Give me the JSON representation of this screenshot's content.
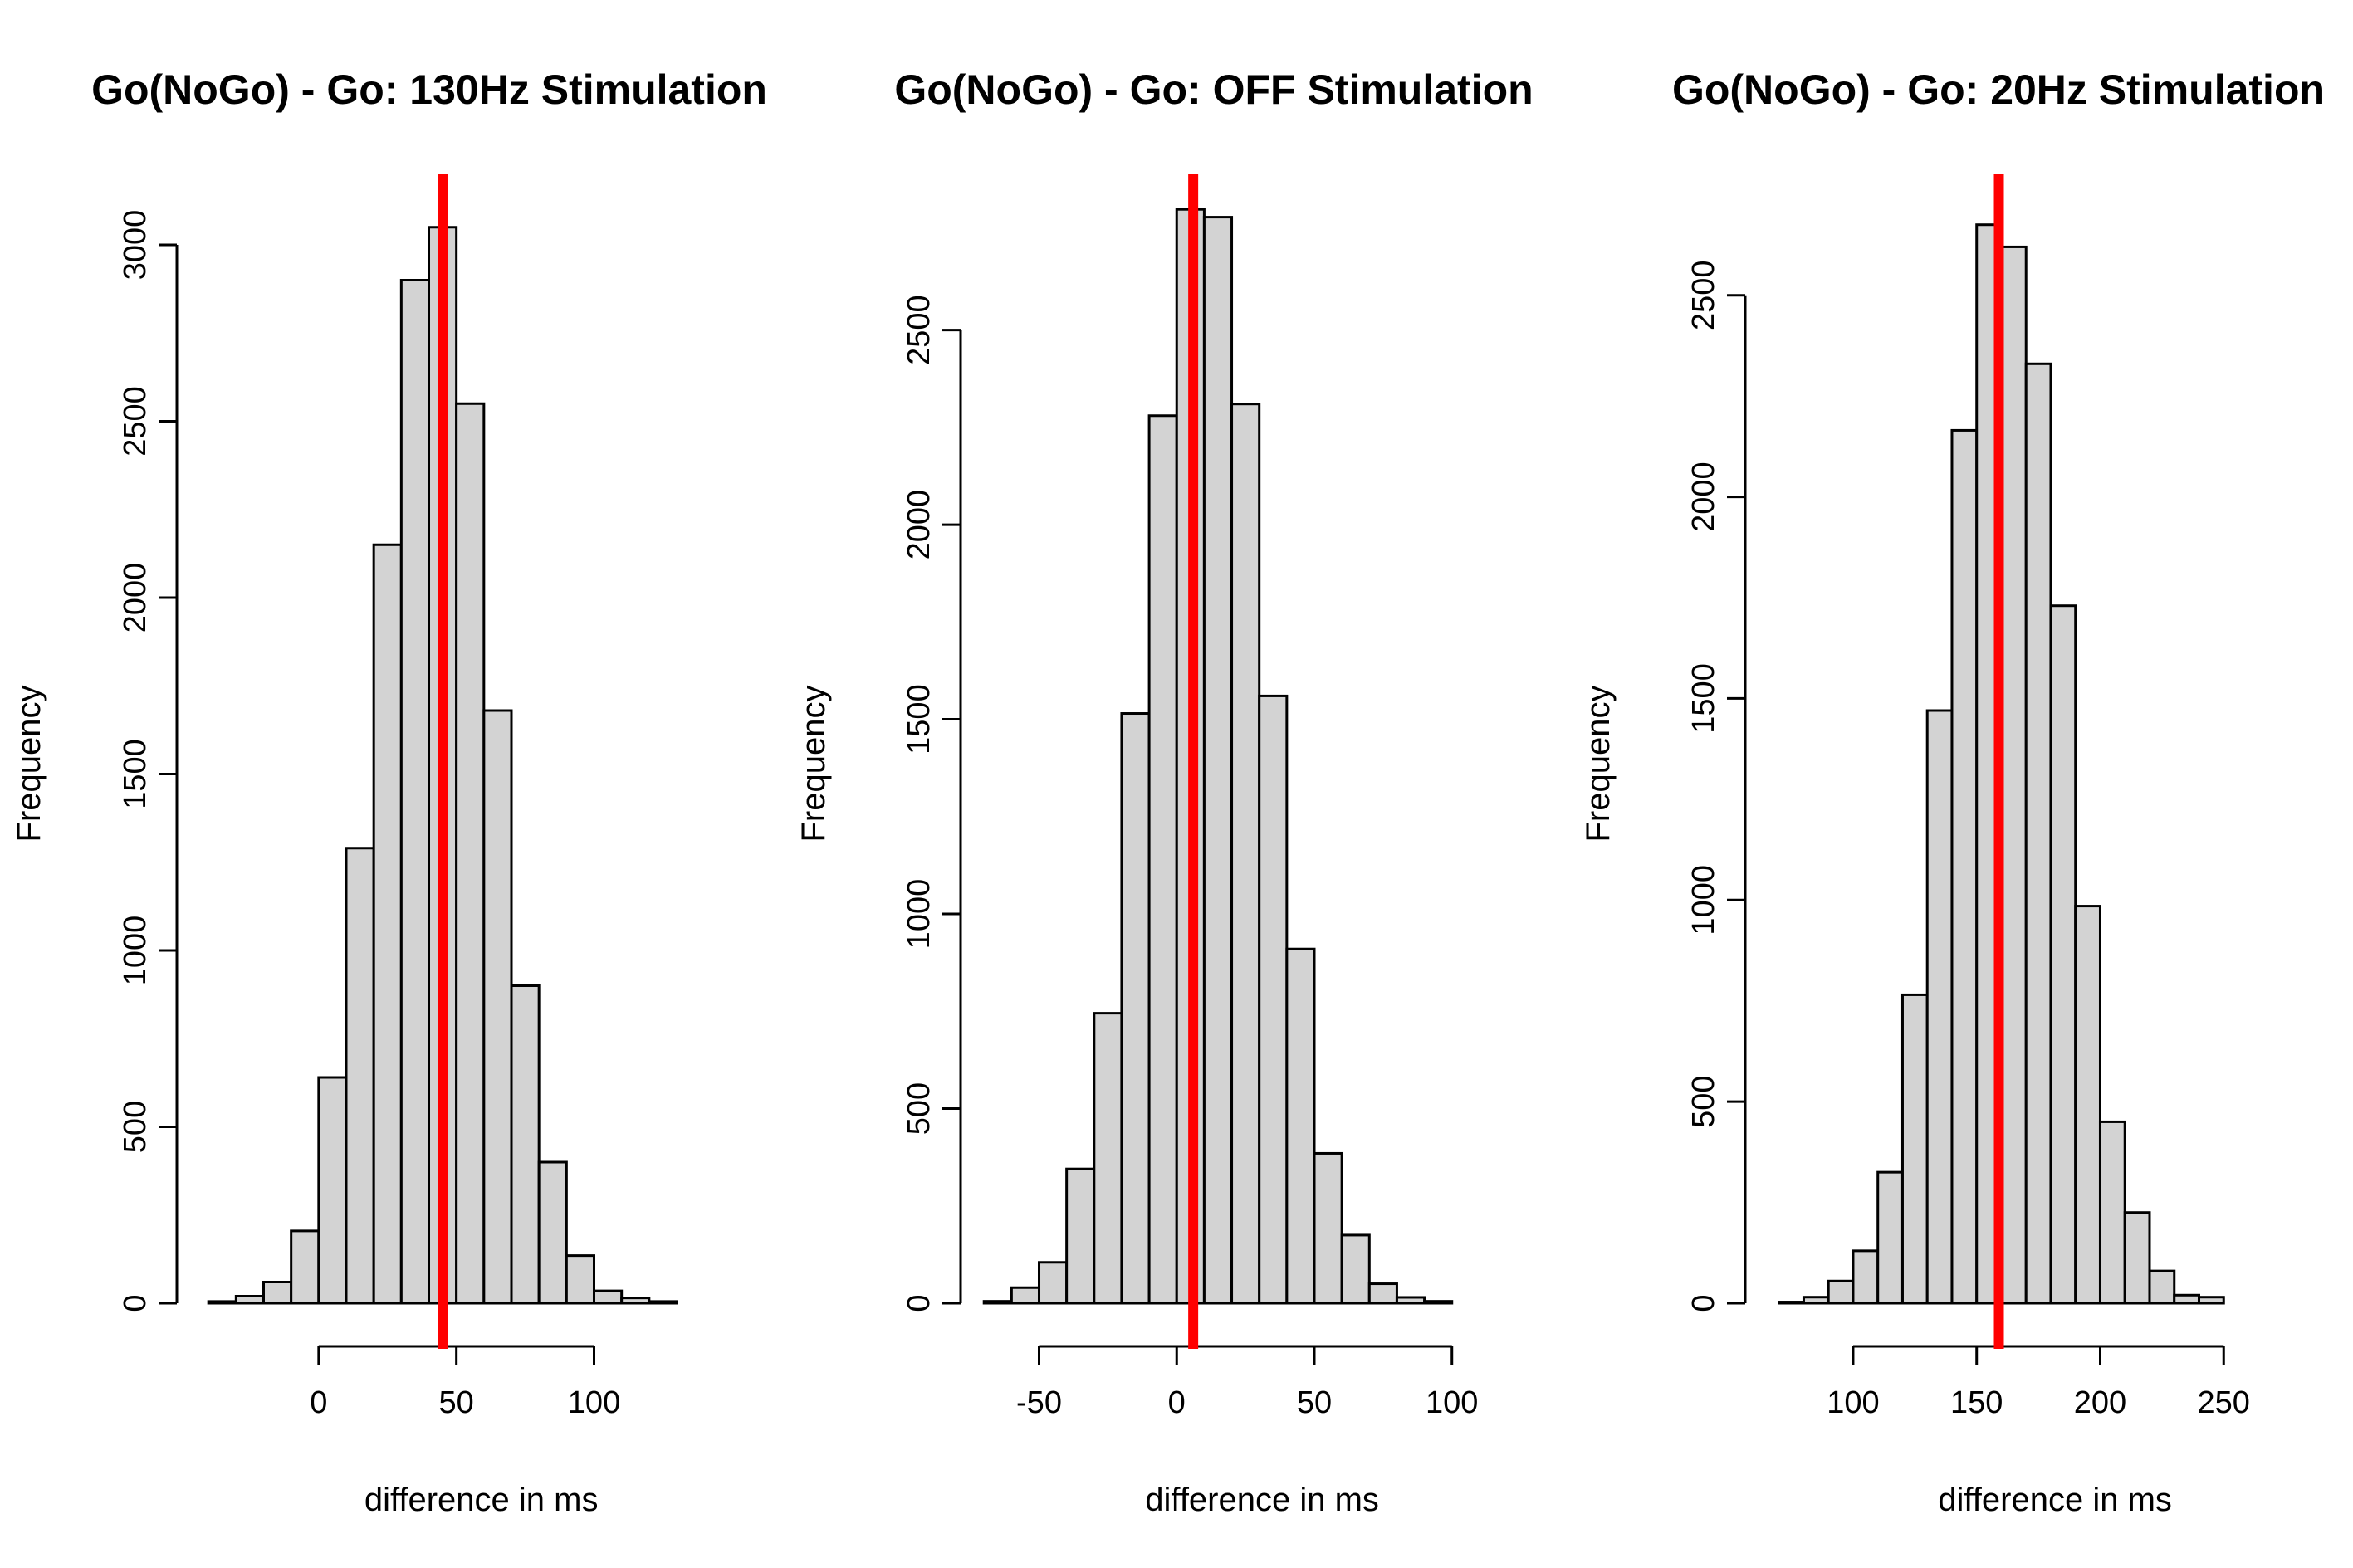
{
  "chart_data": [
    {
      "type": "bar",
      "title": "Go(NoGo) - Go:  130Hz Stimulation",
      "xlabel": "difference in ms",
      "ylabel": "Frequency",
      "xlim": [
        -50,
        130
      ],
      "ylim": [
        0,
        3200
      ],
      "xticks": [
        0,
        50,
        100
      ],
      "yticks": [
        0,
        500,
        1000,
        1500,
        2000,
        2500,
        3000
      ],
      "bin_edges": [
        -40,
        -30,
        -20,
        -10,
        0,
        10,
        20,
        30,
        40,
        50,
        60,
        70,
        80,
        90,
        100,
        110,
        120,
        130
      ],
      "values": [
        5,
        20,
        60,
        205,
        640,
        1290,
        2150,
        2900,
        3050,
        2550,
        1680,
        900,
        400,
        135,
        35,
        15,
        5
      ],
      "vline": 45,
      "vline_color": "#ff0000"
    },
    {
      "type": "bar",
      "title": "Go(NoGo) - Go:  OFF Stimulation",
      "xlabel": "difference in ms",
      "ylabel": "Frequency",
      "xlim": [
        -77,
        104
      ],
      "ylim": [
        0,
        2900
      ],
      "xticks": [
        -50,
        0,
        50,
        100
      ],
      "yticks": [
        0,
        500,
        1000,
        1500,
        2000,
        2500
      ],
      "bin_edges": [
        -70,
        -60,
        -50,
        -40,
        -30,
        -20,
        -10,
        0,
        10,
        20,
        30,
        40,
        50,
        60,
        70,
        80,
        90,
        100
      ],
      "values": [
        5,
        40,
        105,
        345,
        745,
        1515,
        2280,
        2810,
        2790,
        2310,
        1560,
        910,
        385,
        175,
        50,
        15,
        5
      ],
      "vline": 6,
      "vline_color": "#ff0000"
    },
    {
      "type": "bar",
      "title": "Go(NoGo) - Go:  20Hz Stimulation",
      "xlabel": "difference in ms",
      "ylabel": "Frequency",
      "xlim": [
        58,
        260
      ],
      "ylim": [
        0,
        2800
      ],
      "xticks": [
        100,
        150,
        200,
        250
      ],
      "yticks": [
        0,
        500,
        1000,
        1500,
        2000,
        2500
      ],
      "bin_edges": [
        70,
        80,
        90,
        100,
        110,
        120,
        130,
        140,
        150,
        160,
        170,
        180,
        190,
        200,
        210,
        220,
        230,
        240,
        250
      ],
      "values": [
        3,
        15,
        55,
        130,
        325,
        765,
        1470,
        2165,
        2675,
        2620,
        2330,
        1730,
        985,
        450,
        225,
        80,
        20,
        15
      ],
      "vline": 159,
      "vline_color": "#ff0000"
    }
  ]
}
